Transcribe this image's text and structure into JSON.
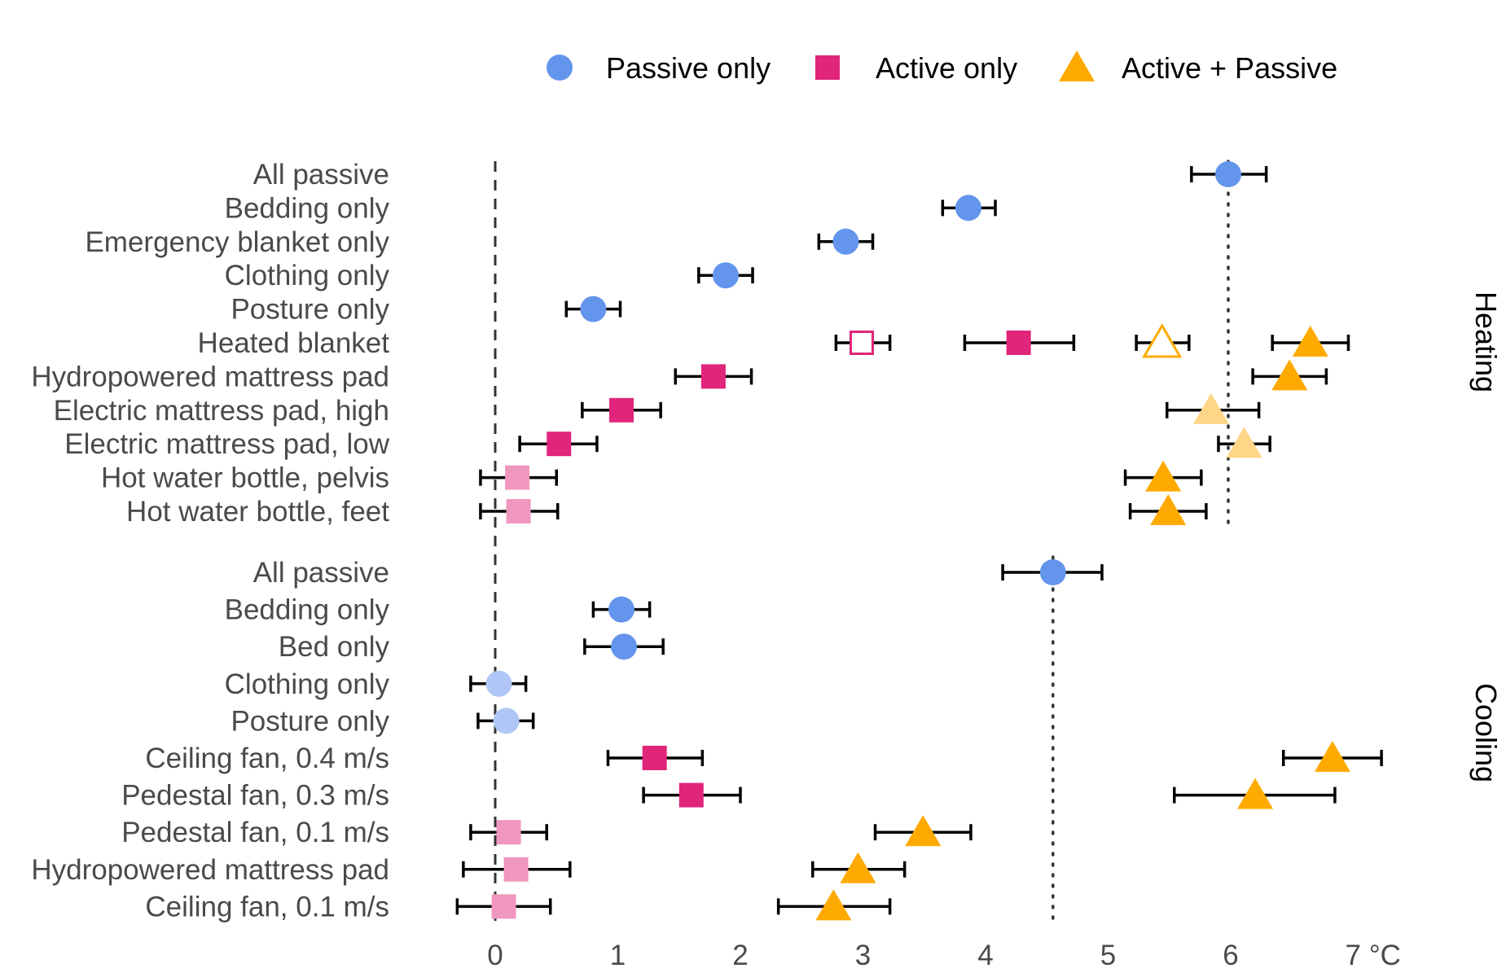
{
  "colors": {
    "passive": "#6495ED",
    "passive_light": "#B0C6F6",
    "active": "#E0257A",
    "active_light": "#F097BF",
    "both": "#FFAA00",
    "both_light": "#FFD688",
    "errorbar": "#000000",
    "axis_text": "#4a4a4a"
  },
  "legend": {
    "items": [
      {
        "label": "Passive only",
        "shape": "circle",
        "color": "#6495ED"
      },
      {
        "label": "Active only",
        "shape": "square",
        "color": "#E0257A"
      },
      {
        "label": "Active + Passive",
        "shape": "triangle",
        "color": "#FFAA00"
      }
    ],
    "placement": "top"
  },
  "chart_data": {
    "type": "scatter",
    "x_tick_labels": [
      "0",
      "1",
      "2",
      "3",
      "4",
      "5",
      "6",
      "7 °C"
    ],
    "xlim": [
      -0.32,
      7.2
    ],
    "grid": false,
    "panels": [
      {
        "facet": "Heating",
        "reference_value": 5.98,
        "categories": [
          "All passive",
          "Bedding only",
          "Emergency blanket only",
          "Clothing only",
          "Posture only",
          "Heated blanket",
          "Hydropowered mattress pad",
          "Electric mattress pad, high",
          "Electric mattress pad, low",
          "Hot water bottle, pelvis",
          "Hot water bottle, feet"
        ],
        "points": [
          {
            "category": "All passive",
            "group": "passive",
            "value": 5.98,
            "low": 5.68,
            "high": 6.29,
            "style": "solid"
          },
          {
            "category": "Bedding only",
            "group": "passive",
            "value": 3.86,
            "low": 3.65,
            "high": 4.08,
            "style": "solid"
          },
          {
            "category": "Emergency blanket only",
            "group": "passive",
            "value": 2.86,
            "low": 2.64,
            "high": 3.08,
            "style": "solid"
          },
          {
            "category": "Clothing only",
            "group": "passive",
            "value": 1.88,
            "low": 1.66,
            "high": 2.1,
            "style": "solid"
          },
          {
            "category": "Posture only",
            "group": "passive",
            "value": 0.8,
            "low": 0.58,
            "high": 1.02,
            "style": "solid"
          },
          {
            "category": "Heated blanket",
            "group": "active",
            "value": 2.99,
            "low": 2.78,
            "high": 3.22,
            "style": "open"
          },
          {
            "category": "Heated blanket",
            "group": "active",
            "value": 4.27,
            "low": 3.83,
            "high": 4.72,
            "style": "solid"
          },
          {
            "category": "Heated blanket",
            "group": "both",
            "value": 5.44,
            "low": 5.23,
            "high": 5.66,
            "style": "open"
          },
          {
            "category": "Heated blanket",
            "group": "both",
            "value": 6.65,
            "low": 6.34,
            "high": 6.96,
            "style": "solid"
          },
          {
            "category": "Hydropowered mattress pad",
            "group": "active",
            "value": 1.78,
            "low": 1.47,
            "high": 2.09,
            "style": "solid"
          },
          {
            "category": "Hydropowered mattress pad",
            "group": "both",
            "value": 6.48,
            "low": 6.18,
            "high": 6.78,
            "style": "solid"
          },
          {
            "category": "Electric mattress pad, high",
            "group": "active",
            "value": 1.03,
            "low": 0.71,
            "high": 1.35,
            "style": "solid"
          },
          {
            "category": "Electric mattress pad, high",
            "group": "both",
            "value": 5.84,
            "low": 5.48,
            "high": 6.23,
            "style": "light"
          },
          {
            "category": "Electric mattress pad, low",
            "group": "active",
            "value": 0.52,
            "low": 0.2,
            "high": 0.83,
            "style": "solid"
          },
          {
            "category": "Electric mattress pad, low",
            "group": "both",
            "value": 6.11,
            "low": 5.9,
            "high": 6.32,
            "style": "light"
          },
          {
            "category": "Hot water bottle, pelvis",
            "group": "active",
            "value": 0.18,
            "low": -0.12,
            "high": 0.5,
            "style": "light"
          },
          {
            "category": "Hot water bottle, pelvis",
            "group": "both",
            "value": 5.45,
            "low": 5.14,
            "high": 5.76,
            "style": "solid"
          },
          {
            "category": "Hot water bottle, feet",
            "group": "active",
            "value": 0.19,
            "low": -0.12,
            "high": 0.51,
            "style": "light"
          },
          {
            "category": "Hot water bottle, feet",
            "group": "both",
            "value": 5.49,
            "low": 5.18,
            "high": 5.8,
            "style": "solid"
          }
        ]
      },
      {
        "facet": "Cooling",
        "reference_value": 4.55,
        "categories": [
          "All passive",
          "Bedding only",
          "Bed only",
          "Clothing only",
          "Posture only",
          "Ceiling fan, 0.4 m/s",
          "Pedestal fan, 0.3 m/s",
          "Pedestal fan, 0.1 m/s",
          "Hydropowered mattress pad",
          "Ceiling fan, 0.1 m/s"
        ],
        "points": [
          {
            "category": "All passive",
            "group": "passive",
            "value": 4.55,
            "low": 4.14,
            "high": 4.95,
            "style": "solid"
          },
          {
            "category": "Bedding only",
            "group": "passive",
            "value": 1.03,
            "low": 0.8,
            "high": 1.26,
            "style": "solid"
          },
          {
            "category": "Bed only",
            "group": "passive",
            "value": 1.05,
            "low": 0.73,
            "high": 1.37,
            "style": "solid"
          },
          {
            "category": "Clothing only",
            "group": "passive",
            "value": 0.03,
            "low": -0.2,
            "high": 0.25,
            "style": "light"
          },
          {
            "category": "Posture only",
            "group": "passive",
            "value": 0.09,
            "low": -0.14,
            "high": 0.31,
            "style": "light"
          },
          {
            "category": "Ceiling fan, 0.4 m/s",
            "group": "active",
            "value": 1.3,
            "low": 0.92,
            "high": 1.69,
            "style": "solid"
          },
          {
            "category": "Ceiling fan, 0.4 m/s",
            "group": "both",
            "value": 6.83,
            "low": 6.43,
            "high": 7.23,
            "style": "solid"
          },
          {
            "category": "Pedestal fan, 0.3 m/s",
            "group": "active",
            "value": 1.6,
            "low": 1.21,
            "high": 2.0,
            "style": "solid"
          },
          {
            "category": "Pedestal fan, 0.3 m/s",
            "group": "both",
            "value": 6.2,
            "low": 5.54,
            "high": 6.85,
            "style": "solid"
          },
          {
            "category": "Pedestal fan, 0.1 m/s",
            "group": "active",
            "value": 0.11,
            "low": -0.2,
            "high": 0.42,
            "style": "light"
          },
          {
            "category": "Pedestal fan, 0.1 m/s",
            "group": "both",
            "value": 3.49,
            "low": 3.1,
            "high": 3.88,
            "style": "solid"
          },
          {
            "category": "Hydropowered mattress pad",
            "group": "active",
            "value": 0.17,
            "low": -0.26,
            "high": 0.61,
            "style": "light"
          },
          {
            "category": "Hydropowered mattress pad",
            "group": "both",
            "value": 2.96,
            "low": 2.59,
            "high": 3.34,
            "style": "solid"
          },
          {
            "category": "Ceiling fan, 0.1 m/s",
            "group": "active",
            "value": 0.07,
            "low": -0.31,
            "high": 0.45,
            "style": "light"
          },
          {
            "category": "Ceiling fan, 0.1 m/s",
            "group": "both",
            "value": 2.76,
            "low": 2.31,
            "high": 3.22,
            "style": "solid"
          }
        ]
      }
    ]
  }
}
